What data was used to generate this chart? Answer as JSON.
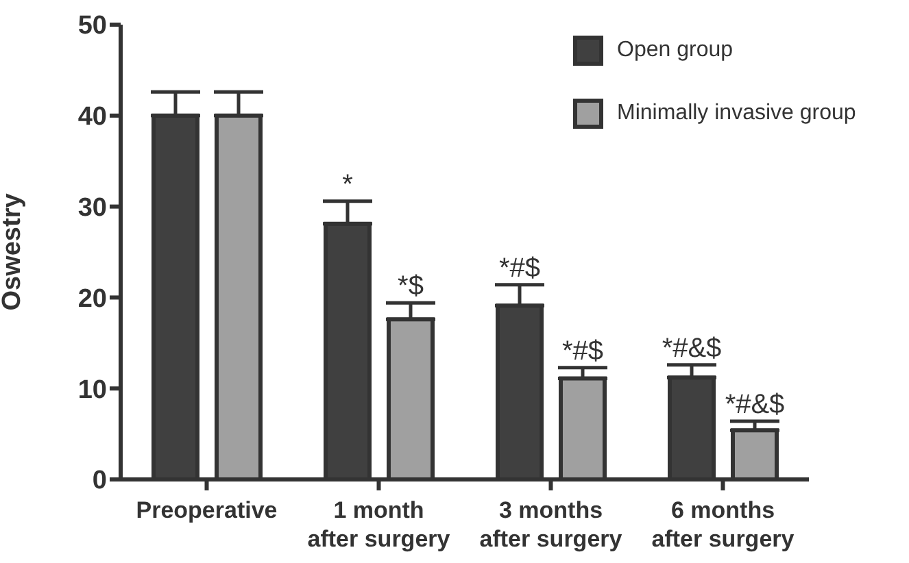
{
  "chart_data": {
    "type": "bar",
    "ylabel": "Oswestry",
    "categories": [
      "Preoperative",
      "1 month\nafter surgery",
      "3 months\nafter surgery",
      "6 months\nafter surgery"
    ],
    "series": [
      {
        "name": "Open group",
        "color": "#404040",
        "values": [
          40,
          28.1,
          19.1,
          11.2
        ],
        "errors": [
          [
            40,
            42.6
          ],
          [
            28.1,
            30.6
          ],
          [
            19.1,
            21.4
          ],
          [
            11.2,
            12.6
          ]
        ],
        "value_labels": [
          null,
          "*",
          "*#$",
          "*#&$"
        ]
      },
      {
        "name": "Minimally invasive group",
        "color": "#a0a0a0",
        "values": [
          40,
          17.6,
          11.1,
          5.4
        ],
        "errors": [
          [
            40,
            42.6
          ],
          [
            17.6,
            19.4
          ],
          [
            11.1,
            12.3
          ],
          [
            5.4,
            6.4
          ]
        ],
        "value_labels": [
          null,
          "*$",
          "*#$",
          "*#&$"
        ]
      }
    ],
    "ylim": [
      0,
      50
    ],
    "yticks": [
      0,
      10,
      20,
      30,
      40,
      50
    ],
    "legend": "top right"
  }
}
